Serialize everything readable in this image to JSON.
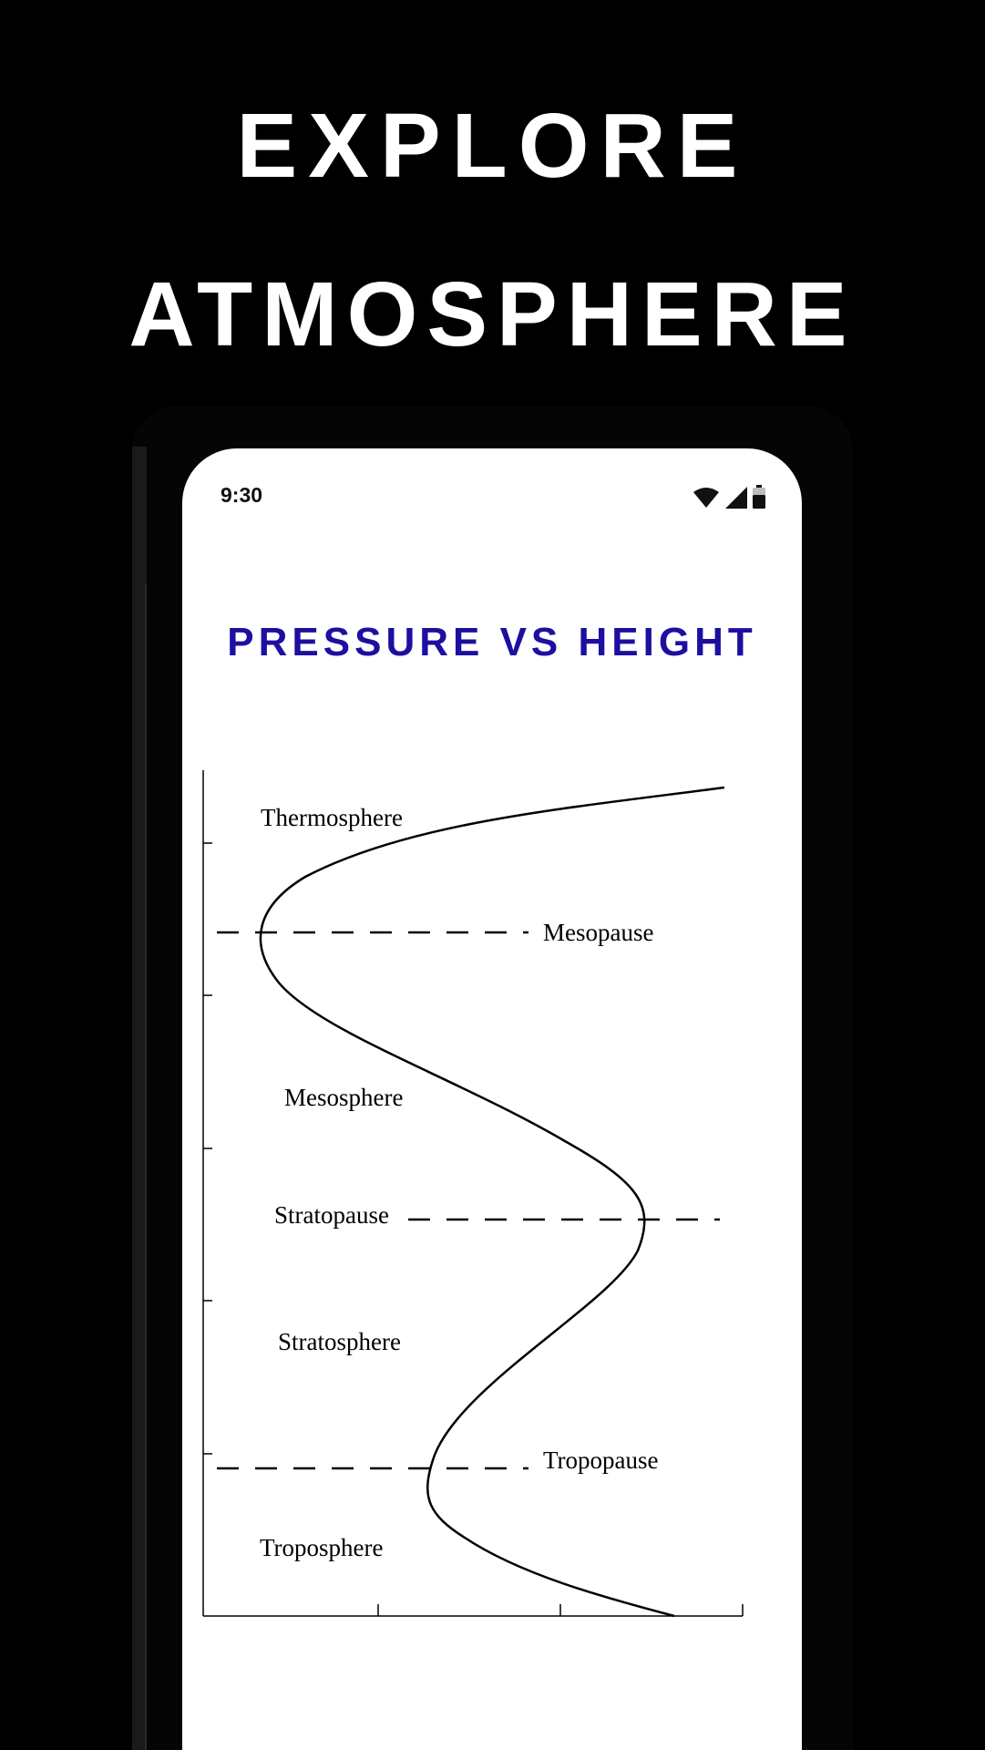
{
  "promo": {
    "line1": "EXPLORE",
    "line2": "ATMOSPHERE"
  },
  "status_bar": {
    "time": "9:30",
    "icons": [
      "wifi-icon",
      "cell-signal-icon",
      "battery-icon"
    ]
  },
  "screen": {
    "title": "PRESSURE VS HEIGHT",
    "title_color": "#1d0fa0"
  },
  "chart_data": {
    "type": "line",
    "title": "PRESSURE VS HEIGHT",
    "xlabel": "",
    "ylabel": "",
    "grid": false,
    "layer_labels": [
      {
        "name": "Thermosphere"
      },
      {
        "name": "Mesosphere"
      },
      {
        "name": "Stratosphere"
      },
      {
        "name": "Troposphere"
      }
    ],
    "boundary_labels": [
      {
        "name": "Mesopause"
      },
      {
        "name": "Stratopause"
      },
      {
        "name": "Tropopause"
      }
    ]
  },
  "colors": {
    "background": "#000000",
    "screen": "#ffffff",
    "promo_text": "#ffffff",
    "curve": "#000000"
  }
}
